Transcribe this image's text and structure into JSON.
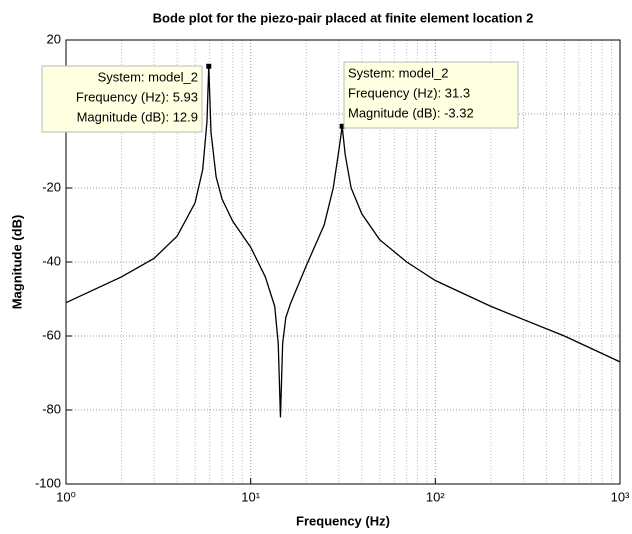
{
  "chart_data": {
    "type": "line",
    "title": "Bode plot for the piezo-pair placed at finite element location 2",
    "x_label": "Frequency  (Hz)",
    "y_label": "Magnitude (dB)",
    "x": [
      1,
      2,
      3,
      4,
      5,
      5.5,
      5.8,
      5.93,
      6.1,
      6.5,
      7,
      8,
      10,
      12,
      13.5,
      14.1,
      14.5,
      14.9,
      15.5,
      16.5,
      20,
      25,
      28,
      30,
      31.3,
      32.5,
      35,
      40,
      50,
      70,
      100,
      200,
      500,
      1000
    ],
    "values": [
      -51,
      -44,
      -39,
      -33,
      -24,
      -15,
      -2,
      12.9,
      -5,
      -17,
      -23,
      -29,
      -36,
      -44,
      -52,
      -62,
      -82,
      -62,
      -55,
      -51,
      -41,
      -30,
      -20,
      -10,
      -3.32,
      -11,
      -20,
      -27,
      -34,
      -40,
      -45,
      -52,
      -60,
      -67
    ],
    "color": "#000000",
    "xscale": "log",
    "xlim": [
      1,
      1000
    ],
    "xticks": [
      {
        "value": 1,
        "label": "10⁰"
      },
      {
        "value": 10,
        "label": "10¹"
      },
      {
        "value": 100,
        "label": "10²"
      },
      {
        "value": 1000,
        "label": "10³"
      }
    ],
    "xminorticks": [
      2,
      3,
      4,
      5,
      6,
      7,
      8,
      9,
      20,
      30,
      40,
      50,
      60,
      70,
      80,
      90,
      200,
      300,
      400,
      500,
      600,
      700,
      800,
      900
    ],
    "ylim": [
      -100,
      20
    ],
    "yticks": [
      -100,
      -80,
      -60,
      -40,
      -20,
      0,
      20
    ],
    "grid": true,
    "annotations": [
      {
        "lines": [
          "System: model_2",
          "Frequency (Hz): 5.93",
          "Magnitude (dB): 12.9"
        ],
        "x": 5.93,
        "y": 12.9
      },
      {
        "lines": [
          "System: model_2",
          "Frequency (Hz): 31.3",
          "Magnitude (dB): -3.32"
        ],
        "x": 31.3,
        "y": -3.32
      }
    ]
  }
}
